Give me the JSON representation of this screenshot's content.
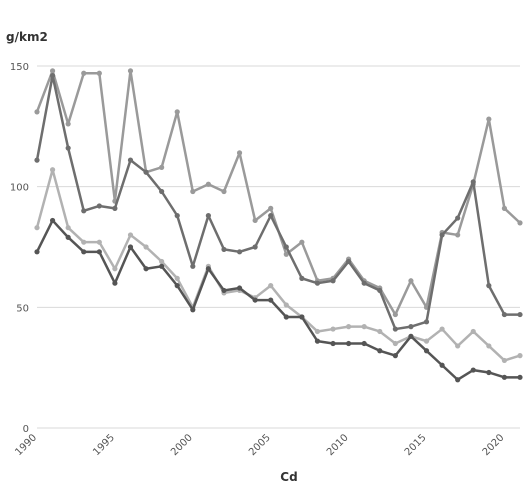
{
  "chart_data": {
    "type": "line",
    "title": "",
    "xlabel": "Cd",
    "ylabel": "g/km2",
    "xlim": [
      1990,
      2021
    ],
    "ylim": [
      0,
      150
    ],
    "yticks": [
      0,
      50,
      100,
      150
    ],
    "xticks": [
      1990,
      1995,
      2000,
      2005,
      2010,
      2015,
      2020
    ],
    "grid": true,
    "legend": "none",
    "x": [
      1990,
      1991,
      1992,
      1993,
      1994,
      1995,
      1996,
      1997,
      1998,
      1999,
      2000,
      2001,
      2002,
      2003,
      2004,
      2005,
      2006,
      2007,
      2008,
      2009,
      2010,
      2011,
      2012,
      2013,
      2014,
      2015,
      2016,
      2017,
      2018,
      2019,
      2020,
      2021
    ],
    "series": [
      {
        "values": [
          131,
          148,
          126,
          147,
          147,
          94,
          148,
          106,
          108,
          131,
          98,
          101,
          98,
          114,
          86,
          91,
          72,
          77,
          61,
          62,
          70,
          61,
          58,
          47,
          61,
          50,
          81,
          80,
          101,
          128,
          91,
          85
        ],
        "color": "#9a9a9a"
      },
      {
        "values": [
          111,
          146,
          116,
          90,
          92,
          91,
          111,
          106,
          98,
          88,
          67,
          88,
          74,
          73,
          75,
          88,
          75,
          62,
          60,
          61,
          69,
          60,
          57,
          41,
          42,
          44,
          80,
          87,
          102,
          59,
          47,
          47
        ],
        "color": "#6e6e6e"
      },
      {
        "values": [
          83,
          107,
          83,
          77,
          77,
          66,
          80,
          75,
          69,
          62,
          50,
          67,
          56,
          57,
          54,
          59,
          51,
          46,
          40,
          41,
          42,
          42,
          40,
          35,
          38,
          36,
          41,
          34,
          40,
          34,
          28,
          30
        ],
        "color": "#b2b2b2"
      },
      {
        "values": [
          73,
          86,
          79,
          73,
          73,
          60,
          75,
          66,
          67,
          59,
          49,
          66,
          57,
          58,
          53,
          53,
          46,
          46,
          36,
          35,
          35,
          35,
          32,
          30,
          38,
          32,
          26,
          20,
          24,
          23,
          21,
          21
        ],
        "color": "#555555"
      }
    ]
  }
}
